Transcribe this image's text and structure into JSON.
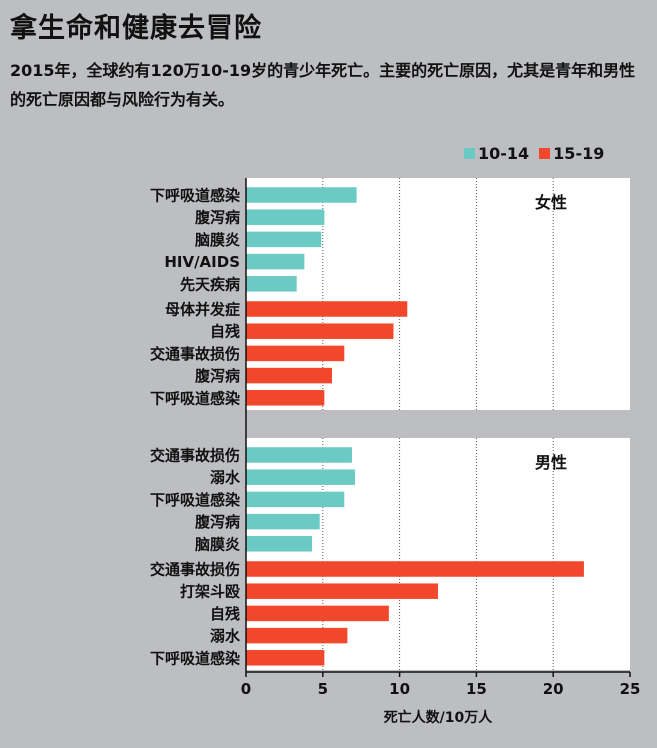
{
  "title": "拿生命和健康去冒险",
  "subtitle": "2015年，全球约有120万10-19岁的青少年死亡。主要的死亡原因，尤其是青年和男性的死亡原因都与风险行为有关。",
  "colors": {
    "age_10_14": "#6ccac4",
    "age_15_19": "#f1472b",
    "panel": "#ffffff",
    "background": "#bdbec2"
  },
  "chart_data": {
    "type": "bar",
    "orientation": "horizontal",
    "title": "拿生命和健康去冒险",
    "xlabel": "死亡人数/10万人",
    "xlim": [
      0,
      25
    ],
    "xticks": [
      0,
      5,
      10,
      15,
      20,
      25
    ],
    "grid": "vertical dotted",
    "legend": {
      "position": "top-right",
      "entries": [
        "10-14",
        "15-19"
      ]
    },
    "panels": [
      {
        "label": "女性",
        "groups": [
          {
            "series": "10-14",
            "categories": [
              "下呼吸道感染",
              "腹泻病",
              "脑膜炎",
              "HIV/AIDS",
              "先天疾病"
            ],
            "values": [
              7.2,
              5.1,
              4.9,
              3.8,
              3.3
            ]
          },
          {
            "series": "15-19",
            "categories": [
              "母体并发症",
              "自残",
              "交通事故损伤",
              "腹泻病",
              "下呼吸道感染"
            ],
            "values": [
              10.5,
              9.6,
              6.4,
              5.6,
              5.1
            ]
          }
        ]
      },
      {
        "label": "男性",
        "groups": [
          {
            "series": "10-14",
            "categories": [
              "交通事故损伤",
              "溺水",
              "下呼吸道感染",
              "腹泻病",
              "脑膜炎"
            ],
            "values": [
              6.9,
              7.1,
              6.4,
              4.8,
              4.3
            ]
          },
          {
            "series": "15-19",
            "categories": [
              "交通事故损伤",
              "打架斗殴",
              "自残",
              "溺水",
              "下呼吸道感染"
            ],
            "values": [
              22.0,
              12.5,
              9.3,
              6.6,
              5.1
            ]
          }
        ]
      }
    ]
  }
}
